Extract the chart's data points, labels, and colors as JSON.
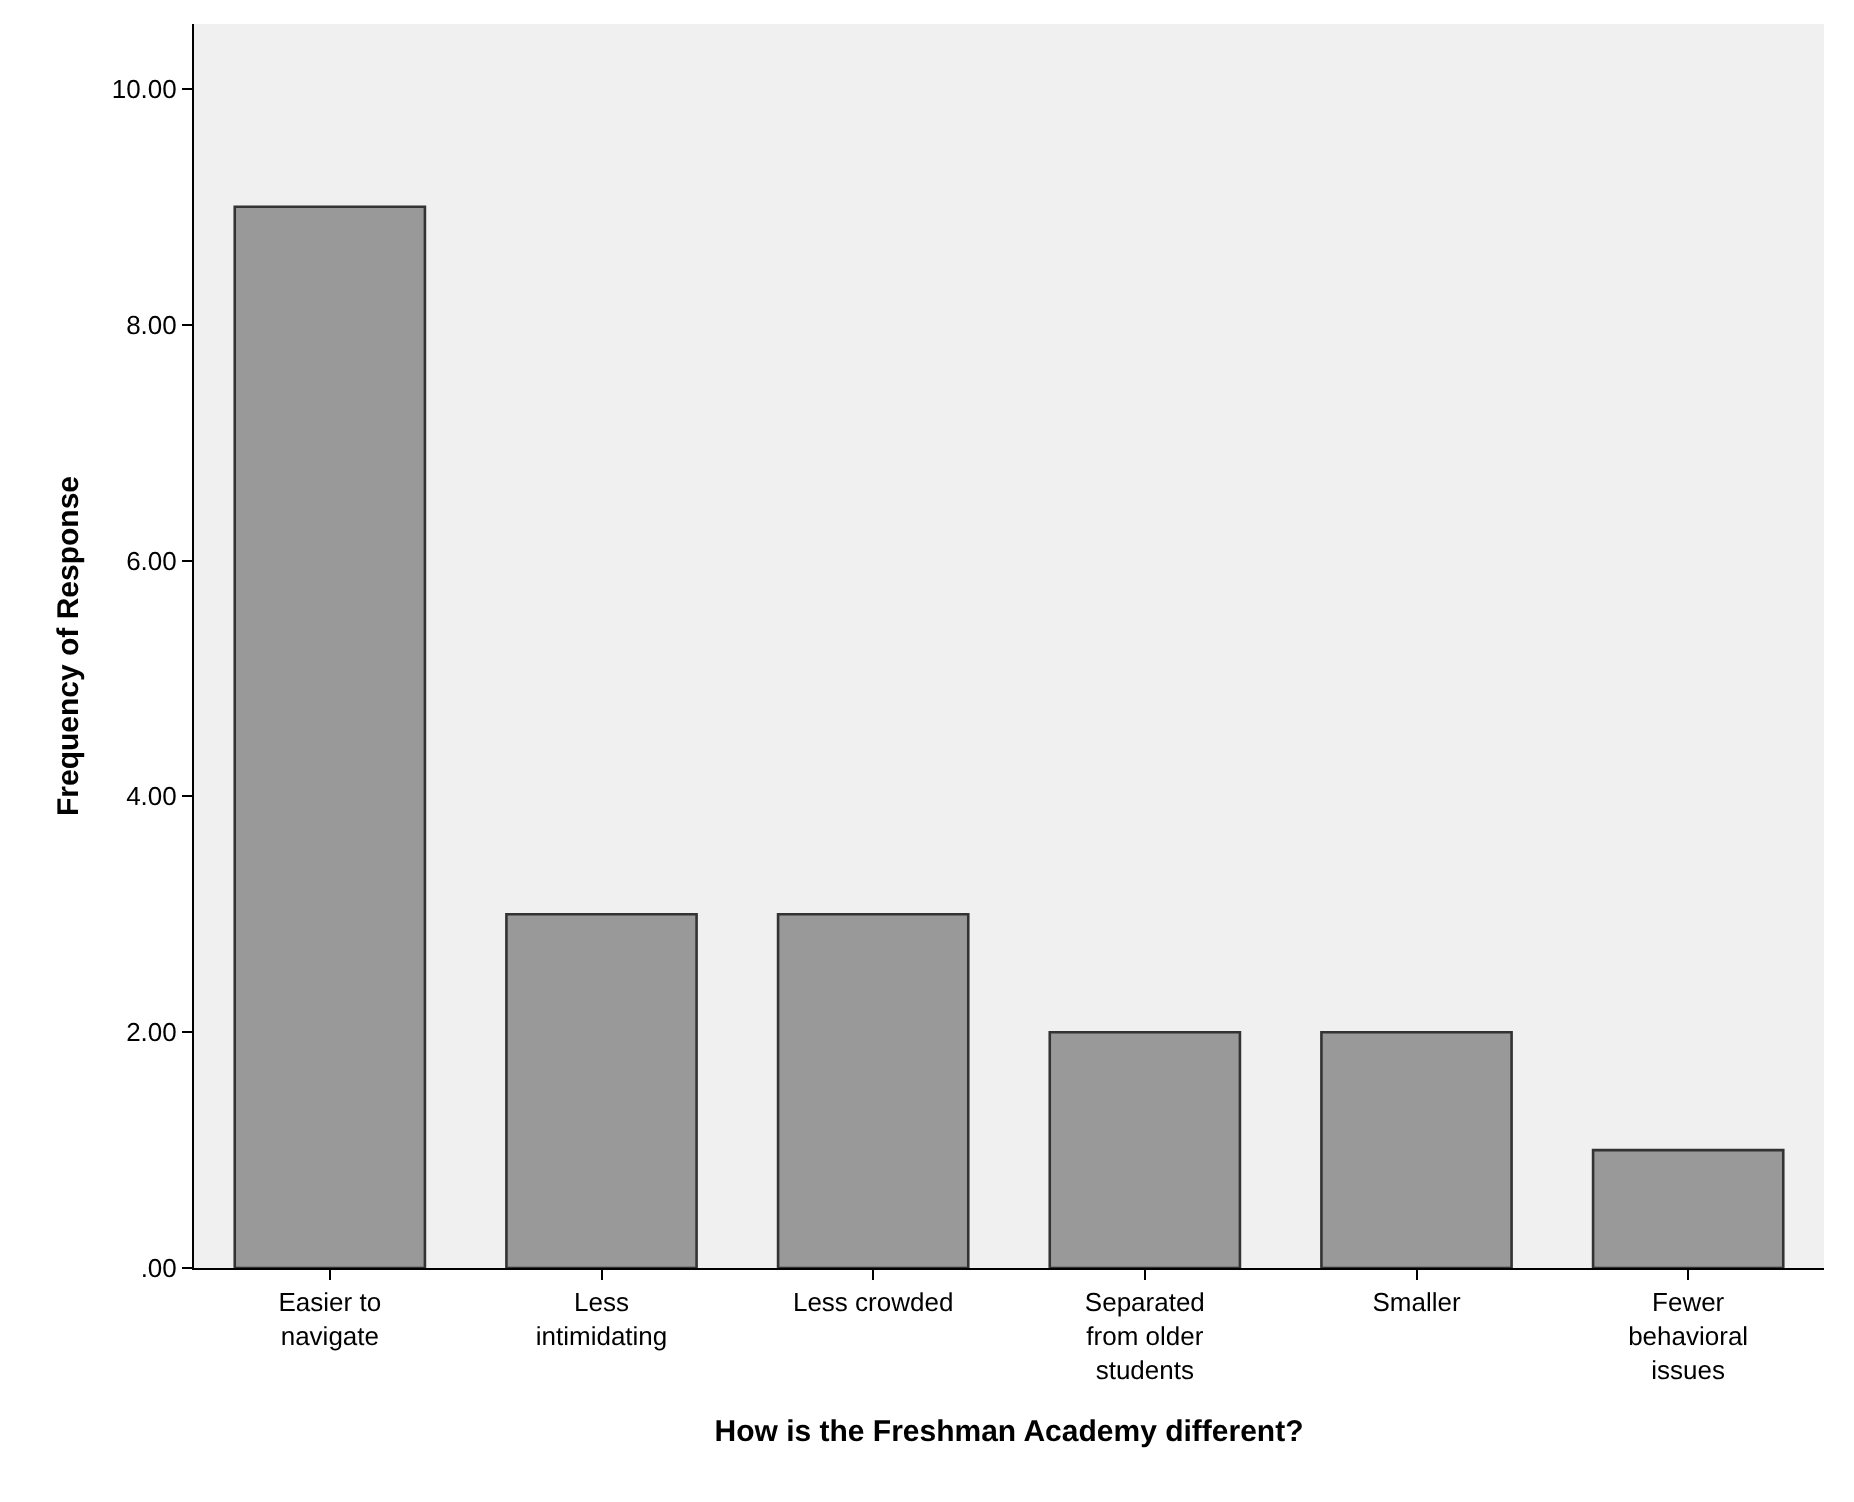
{
  "chart_data": {
    "type": "bar",
    "xlabel": "How is the Freshman Academy different?",
    "ylabel": "Frequency of Response",
    "categories": [
      "Easier to navigate",
      "Less intimidating",
      "Less crowded",
      "Separated from older students",
      "Smaller",
      "Fewer behavioral issues"
    ],
    "values": [
      9,
      3,
      3,
      2,
      2,
      1
    ],
    "color": "#999999",
    "ylim": [
      0,
      10.55
    ],
    "yticks": [
      {
        "value": 0,
        "label": ".00"
      },
      {
        "value": 2,
        "label": "2.00"
      },
      {
        "value": 4,
        "label": "4.00"
      },
      {
        "value": 6,
        "label": "6.00"
      },
      {
        "value": 8,
        "label": "8.00"
      },
      {
        "value": 10,
        "label": "10.00"
      }
    ],
    "grid": false,
    "legend": false
  }
}
